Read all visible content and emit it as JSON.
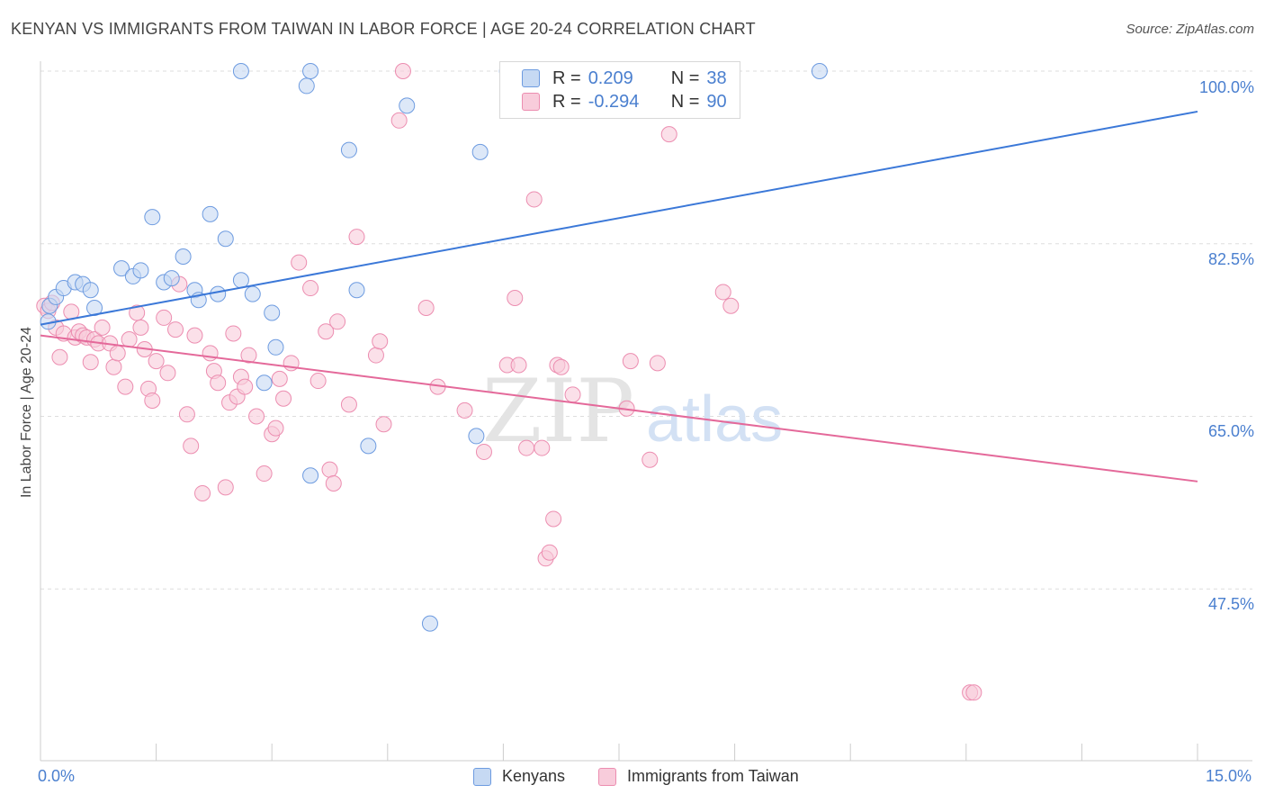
{
  "header": {
    "title": "KENYAN VS IMMIGRANTS FROM TAIWAN IN LABOR FORCE | AGE 20-24 CORRELATION CHART",
    "source": "Source: ZipAtlas.com"
  },
  "watermark": {
    "part1": "ZIP",
    "part2": "atlas"
  },
  "colors": {
    "blue_fill": "#c6d9f3",
    "blue_stroke": "#6d9be0",
    "blue_line": "#3b78d8",
    "pink_fill": "#f8ccdb",
    "pink_stroke": "#ec8db0",
    "pink_line": "#e4699a",
    "tick_text": "#4a7fcf",
    "grid": "#dddddd"
  },
  "legend": {
    "rows": [
      {
        "r_label": "R =",
        "r_value": "0.209",
        "n_label": "N =",
        "n_value": "38"
      },
      {
        "r_label": "R =",
        "r_value": "-0.294",
        "n_label": "N =",
        "n_value": "90"
      }
    ]
  },
  "bottom_legend": {
    "items": [
      {
        "label": "Kenyans"
      },
      {
        "label": "Immigrants from Taiwan"
      }
    ]
  },
  "chart_data": {
    "type": "scatter",
    "ylabel": "In Labor Force | Age 20-24",
    "xlim": [
      0,
      15
    ],
    "ylim": [
      30,
      100
    ],
    "x_tick_labels": [
      "0.0%",
      "15.0%"
    ],
    "y_ticks": [
      47.5,
      65.0,
      82.5,
      100.0
    ],
    "y_tick_labels": [
      "47.5%",
      "65.0%",
      "82.5%",
      "100.0%"
    ],
    "grid": "horizontal dashed",
    "legend_position": "top-center",
    "series": [
      {
        "name": "Kenyans",
        "color": "#6d9be0",
        "trend": {
          "x": [
            0,
            15
          ],
          "y": [
            74.3,
            95.9
          ]
        },
        "points": [
          [
            0.12,
            76.2
          ],
          [
            0.2,
            77.1
          ],
          [
            0.3,
            78.0
          ],
          [
            0.45,
            78.6
          ],
          [
            0.55,
            78.4
          ],
          [
            0.65,
            77.8
          ],
          [
            0.7,
            76.0
          ],
          [
            1.05,
            80.0
          ],
          [
            1.2,
            79.2
          ],
          [
            1.3,
            79.8
          ],
          [
            1.45,
            85.2
          ],
          [
            1.6,
            78.6
          ],
          [
            1.7,
            79.0
          ],
          [
            1.85,
            81.2
          ],
          [
            2.0,
            77.8
          ],
          [
            2.05,
            76.8
          ],
          [
            2.2,
            85.5
          ],
          [
            2.3,
            77.4
          ],
          [
            2.4,
            83.0
          ],
          [
            2.6,
            100.0
          ],
          [
            2.6,
            78.8
          ],
          [
            2.75,
            77.4
          ],
          [
            3.0,
            75.5
          ],
          [
            3.05,
            72.0
          ],
          [
            3.45,
            98.5
          ],
          [
            3.5,
            100.0
          ],
          [
            3.5,
            59.0
          ],
          [
            4.0,
            92.0
          ],
          [
            4.1,
            77.8
          ],
          [
            4.25,
            62.0
          ],
          [
            4.75,
            96.5
          ],
          [
            5.05,
            44.0
          ],
          [
            5.65,
            63.0
          ],
          [
            5.7,
            91.8
          ],
          [
            6.05,
            100.0
          ],
          [
            10.1,
            100.0
          ],
          [
            2.9,
            68.4
          ],
          [
            0.1,
            74.6
          ]
        ]
      },
      {
        "name": "Immigrants from Taiwan",
        "color": "#ec8db0",
        "trend": {
          "x": [
            0,
            15
          ],
          "y": [
            73.2,
            58.4
          ]
        },
        "points": [
          [
            0.05,
            76.2
          ],
          [
            0.1,
            75.7
          ],
          [
            0.15,
            76.5
          ],
          [
            0.2,
            74.0
          ],
          [
            0.25,
            71.0
          ],
          [
            0.3,
            73.4
          ],
          [
            0.4,
            75.6
          ],
          [
            0.45,
            73.0
          ],
          [
            0.5,
            73.6
          ],
          [
            0.55,
            73.2
          ],
          [
            0.6,
            73.0
          ],
          [
            0.65,
            70.5
          ],
          [
            0.7,
            72.8
          ],
          [
            0.75,
            72.4
          ],
          [
            0.8,
            74.0
          ],
          [
            0.9,
            72.4
          ],
          [
            0.95,
            70.0
          ],
          [
            1.0,
            71.4
          ],
          [
            1.1,
            68.0
          ],
          [
            1.15,
            72.8
          ],
          [
            1.25,
            75.5
          ],
          [
            1.3,
            74.0
          ],
          [
            1.35,
            71.8
          ],
          [
            1.4,
            67.8
          ],
          [
            1.45,
            66.6
          ],
          [
            1.5,
            70.6
          ],
          [
            1.6,
            75.0
          ],
          [
            1.65,
            69.4
          ],
          [
            1.75,
            73.8
          ],
          [
            1.8,
            78.4
          ],
          [
            1.9,
            65.2
          ],
          [
            1.95,
            62.0
          ],
          [
            2.0,
            73.2
          ],
          [
            2.1,
            57.2
          ],
          [
            2.2,
            71.4
          ],
          [
            2.25,
            69.6
          ],
          [
            2.3,
            68.4
          ],
          [
            2.4,
            57.8
          ],
          [
            2.45,
            66.4
          ],
          [
            2.5,
            73.4
          ],
          [
            2.55,
            67.0
          ],
          [
            2.6,
            69.0
          ],
          [
            2.65,
            68.0
          ],
          [
            2.7,
            71.2
          ],
          [
            2.8,
            65.0
          ],
          [
            2.9,
            59.2
          ],
          [
            3.0,
            63.2
          ],
          [
            3.05,
            63.8
          ],
          [
            3.1,
            68.8
          ],
          [
            3.15,
            66.8
          ],
          [
            3.25,
            70.4
          ],
          [
            3.35,
            80.6
          ],
          [
            3.5,
            78.0
          ],
          [
            3.6,
            68.6
          ],
          [
            3.7,
            73.6
          ],
          [
            3.75,
            59.6
          ],
          [
            3.8,
            58.2
          ],
          [
            3.85,
            74.6
          ],
          [
            4.0,
            66.2
          ],
          [
            4.1,
            83.2
          ],
          [
            4.35,
            71.2
          ],
          [
            4.4,
            72.6
          ],
          [
            4.45,
            64.2
          ],
          [
            4.65,
            95.0
          ],
          [
            4.7,
            100.0
          ],
          [
            5.0,
            76.0
          ],
          [
            5.15,
            68.0
          ],
          [
            5.5,
            65.6
          ],
          [
            5.75,
            61.4
          ],
          [
            6.05,
            70.2
          ],
          [
            6.15,
            77.0
          ],
          [
            6.3,
            61.8
          ],
          [
            6.4,
            87.0
          ],
          [
            6.5,
            61.8
          ],
          [
            6.55,
            50.6
          ],
          [
            6.6,
            51.2
          ],
          [
            6.65,
            54.6
          ],
          [
            6.7,
            70.2
          ],
          [
            6.75,
            70.0
          ],
          [
            6.9,
            67.2
          ],
          [
            7.6,
            65.8
          ],
          [
            7.65,
            70.6
          ],
          [
            7.9,
            60.6
          ],
          [
            8.0,
            70.4
          ],
          [
            8.15,
            93.6
          ],
          [
            8.85,
            77.6
          ],
          [
            8.95,
            76.2
          ],
          [
            12.05,
            37.0
          ],
          [
            12.1,
            37.0
          ],
          [
            6.2,
            70.2
          ]
        ]
      }
    ]
  }
}
